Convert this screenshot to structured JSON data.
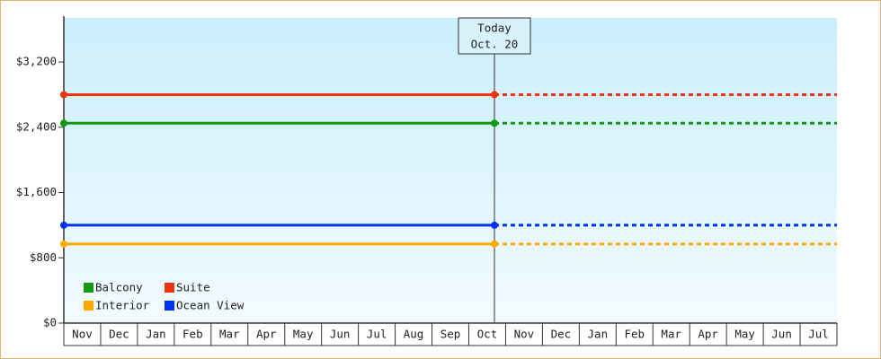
{
  "chart_data": {
    "type": "line",
    "categories": [
      "Nov",
      "Dec",
      "Jan",
      "Feb",
      "Mar",
      "Apr",
      "May",
      "Jun",
      "Jul",
      "Aug",
      "Sep",
      "Oct",
      "Nov",
      "Dec",
      "Jan",
      "Feb",
      "Mar",
      "Apr",
      "May",
      "Jun",
      "Jul"
    ],
    "ylim": [
      0,
      3740
    ],
    "yticks": [
      {
        "value": 0,
        "label": "$0"
      },
      {
        "value": 800,
        "label": "$800"
      },
      {
        "value": 1600,
        "label": "$1,600"
      },
      {
        "value": 2400,
        "label": "$2,400"
      },
      {
        "value": 3200,
        "label": "$3,200"
      }
    ],
    "annotation": [
      "Today",
      "Oct. 20"
    ],
    "series": [
      {
        "name": "Balcony",
        "color": "#119911",
        "values": [
          2450,
          2450,
          2450,
          2450,
          2450,
          2450,
          2450,
          2450,
          2450,
          2450,
          2450,
          2450,
          null,
          null,
          null,
          null,
          null,
          null,
          null,
          null,
          null
        ],
        "forecast": [
          null,
          null,
          null,
          null,
          null,
          null,
          null,
          null,
          null,
          null,
          null,
          2450,
          2450,
          2450,
          2450,
          2450,
          2450,
          2450,
          2450,
          2450,
          2450
        ]
      },
      {
        "name": "Suite",
        "color": "#ee3311",
        "values": [
          2800,
          2800,
          2800,
          2800,
          2800,
          2800,
          2800,
          2800,
          2800,
          2800,
          2800,
          2800,
          null,
          null,
          null,
          null,
          null,
          null,
          null,
          null,
          null
        ],
        "forecast": [
          null,
          null,
          null,
          null,
          null,
          null,
          null,
          null,
          null,
          null,
          null,
          2800,
          2800,
          2800,
          2800,
          2800,
          2800,
          2800,
          2800,
          2800,
          2800
        ]
      },
      {
        "name": "Interior",
        "color": "#ffaa00",
        "values": [
          970,
          970,
          970,
          970,
          970,
          970,
          970,
          970,
          970,
          970,
          970,
          970,
          null,
          null,
          null,
          null,
          null,
          null,
          null,
          null,
          null
        ],
        "forecast": [
          null,
          null,
          null,
          null,
          null,
          null,
          null,
          null,
          null,
          null,
          null,
          970,
          970,
          970,
          970,
          970,
          970,
          970,
          970,
          970,
          970
        ]
      },
      {
        "name": "Ocean View",
        "color": "#0033ee",
        "values": [
          1200,
          1200,
          1200,
          1200,
          1200,
          1200,
          1200,
          1200,
          1200,
          1200,
          1200,
          1200,
          null,
          null,
          null,
          null,
          null,
          null,
          null,
          null,
          null
        ],
        "forecast": [
          null,
          null,
          null,
          null,
          null,
          null,
          null,
          null,
          null,
          null,
          null,
          1200,
          1200,
          1200,
          1200,
          1200,
          1200,
          1200,
          1200,
          1200,
          1200
        ]
      }
    ]
  }
}
